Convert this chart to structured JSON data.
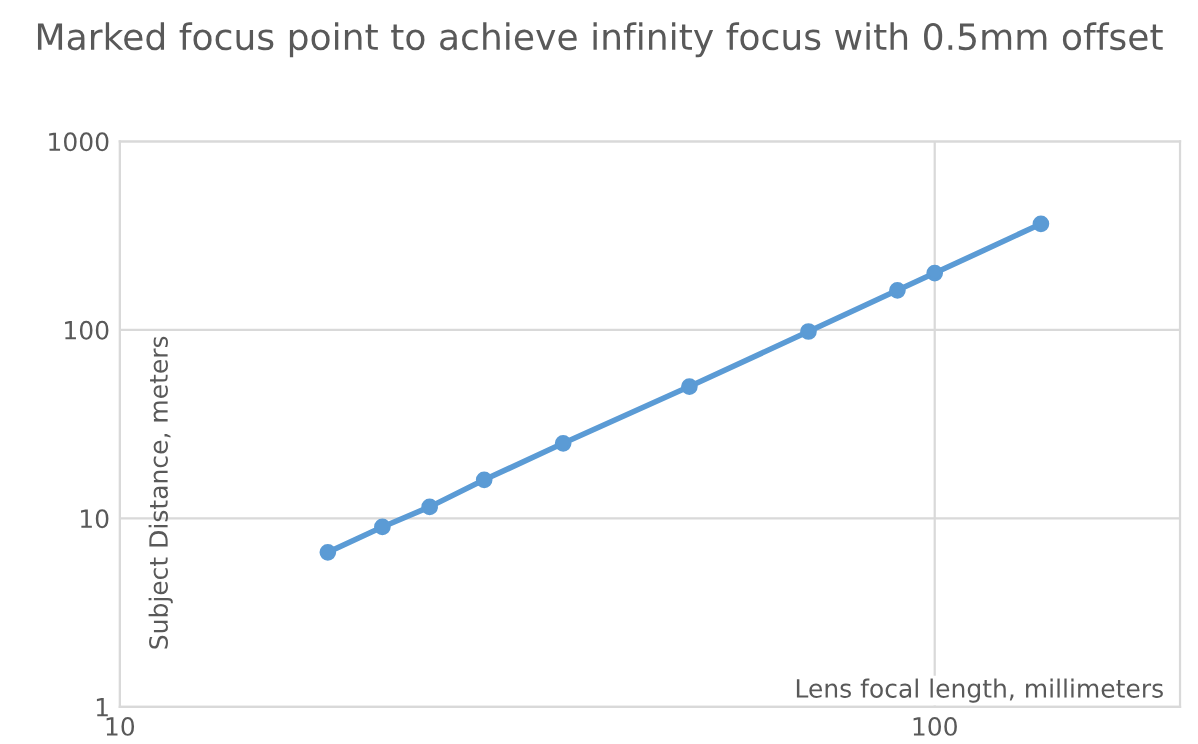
{
  "chart_data": {
    "type": "line",
    "title": "Marked focus point to achieve infinity focus with 0.5mm offset",
    "xlabel": "Lens focal length, millimeters",
    "ylabel": "Subject Distance, meters",
    "x": [
      18,
      21,
      24,
      28,
      35,
      50,
      70,
      90,
      100,
      135
    ],
    "series": [
      {
        "color": "#5b9bd5",
        "values": [
          6.6,
          9,
          11.5,
          16,
          25,
          50,
          98,
          162,
          200,
          365
        ]
      }
    ],
    "log": "xy",
    "xlim": [
      10,
      200
    ],
    "ylim": [
      1,
      1000
    ],
    "xticks": [
      10,
      100
    ],
    "yticks": [
      1,
      10,
      100,
      1000
    ],
    "grid": true,
    "marker": "circle",
    "line_style": "solid",
    "legend": false
  }
}
